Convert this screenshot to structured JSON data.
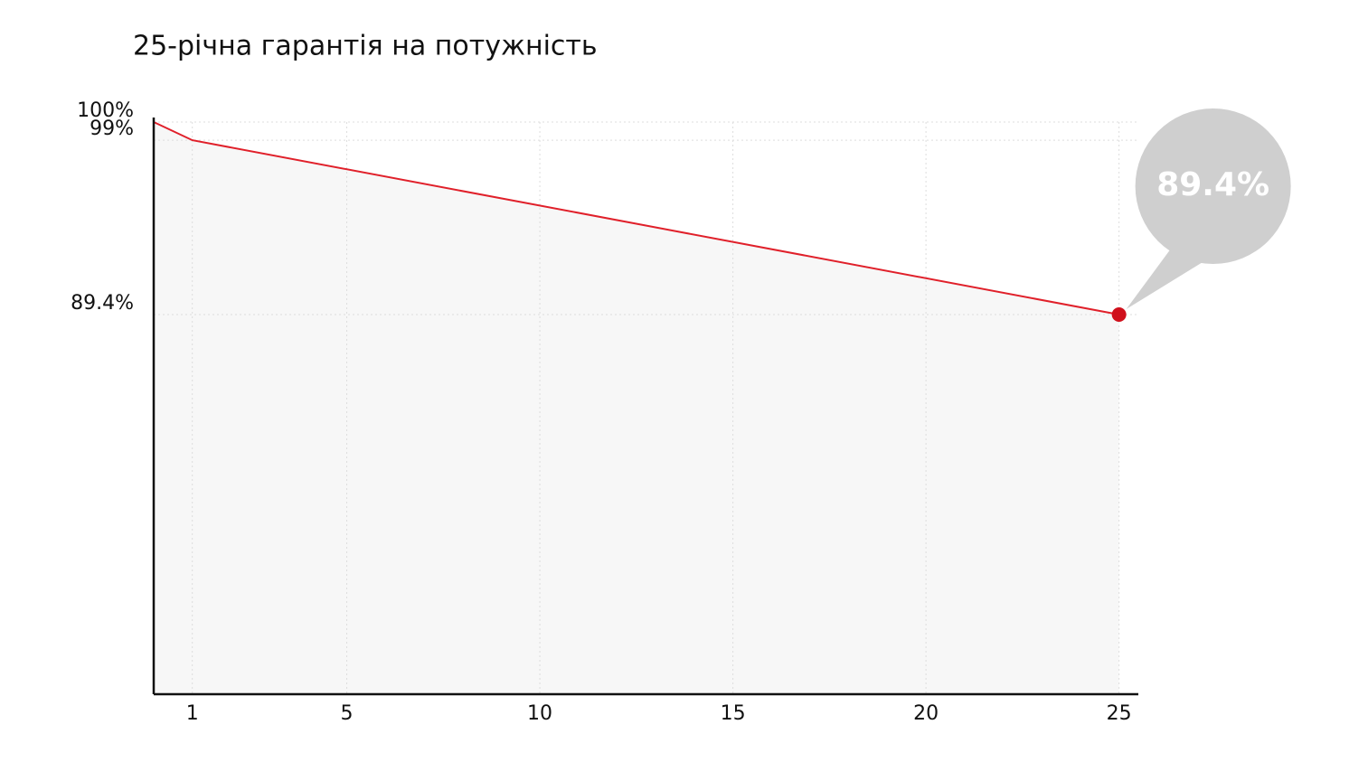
{
  "chart_data": {
    "type": "line",
    "title": "25-річна гарантія на потужність",
    "x": [
      0,
      1,
      25
    ],
    "series": [
      {
        "name": "power",
        "color": "#e0202a",
        "values": [
          100,
          99,
          89.4
        ],
        "value_labels": [
          null,
          null,
          "89.4%"
        ]
      }
    ],
    "xlim": [
      0,
      25.5
    ],
    "xticks": [
      1,
      5,
      10,
      15,
      20,
      25
    ],
    "ylim": [
      68.5,
      100
    ],
    "yticks": [
      {
        "value": 100,
        "label": "100%"
      },
      {
        "value": 99,
        "label": "99%"
      },
      {
        "value": 89.4,
        "label": "89.4%"
      }
    ],
    "grid": true
  }
}
